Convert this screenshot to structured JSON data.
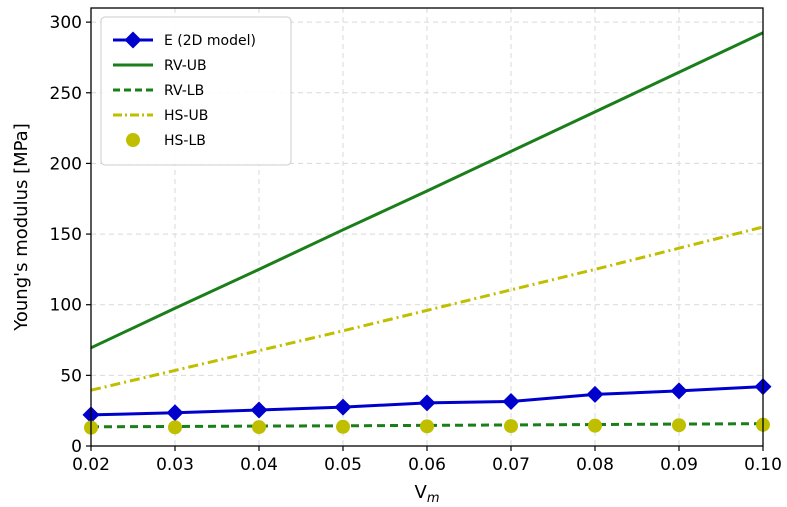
{
  "chart_data": {
    "type": "line",
    "title": "",
    "xlabel": "V",
    "xlabel_sub": "m",
    "ylabel": "Young's modulus [MPa]",
    "xlim": [
      0.02,
      0.1
    ],
    "ylim": [
      0,
      310
    ],
    "x": [
      0.02,
      0.03,
      0.04,
      0.05,
      0.06,
      0.07,
      0.08,
      0.09,
      0.1
    ],
    "x_ticks": [
      "0.02",
      "0.03",
      "0.04",
      "0.05",
      "0.06",
      "0.07",
      "0.08",
      "0.09",
      "0.10"
    ],
    "y_ticks": [
      0,
      50,
      100,
      150,
      200,
      250,
      300
    ],
    "y_tick_labels": [
      "0",
      "50",
      "100",
      "150",
      "200",
      "250",
      "300"
    ],
    "grid": true,
    "legend_position": "top-left",
    "series": [
      {
        "name": "E (2D model)",
        "color": "#0000cc",
        "style": "solid",
        "marker": "diamond",
        "values": [
          22,
          23.5,
          25.5,
          27.5,
          30.5,
          31.5,
          36.5,
          39,
          42
        ]
      },
      {
        "name": "RV-UB",
        "color": "#1a7f1a",
        "style": "solid",
        "marker": "none",
        "values": [
          69.5,
          97.5,
          125,
          153,
          180.5,
          208.5,
          236.5,
          264.5,
          292.5
        ]
      },
      {
        "name": "RV-LB",
        "color": "#1a7f1a",
        "style": "dashed",
        "marker": "none",
        "values": [
          13.6,
          13.8,
          14.1,
          14.3,
          14.6,
          14.9,
          15.2,
          15.5,
          15.8
        ]
      },
      {
        "name": "HS-UB",
        "color": "#bfbf00",
        "style": "dashdot",
        "marker": "none",
        "values": [
          39.5,
          53.5,
          67.5,
          81.5,
          96,
          110.5,
          125,
          140,
          155
        ]
      },
      {
        "name": "HS-LB",
        "color": "#bfbf00",
        "style": "none",
        "marker": "circle",
        "values": [
          13,
          13.2,
          13.4,
          13.6,
          13.9,
          14.1,
          14.4,
          14.7,
          15.0
        ]
      }
    ]
  }
}
